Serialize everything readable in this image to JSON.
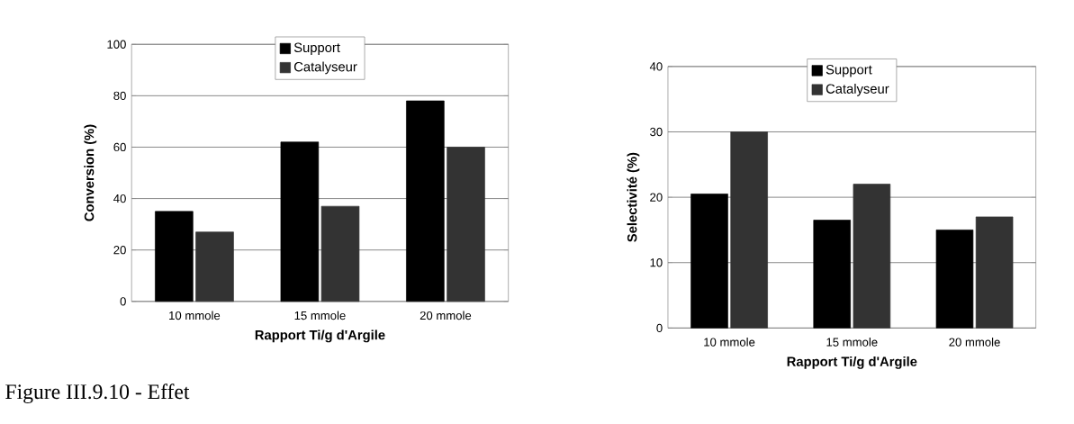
{
  "chart_data": [
    {
      "type": "bar",
      "xlabel": "Rapport Ti/g d'Argile",
      "ylabel": "Conversion (%)",
      "categories": [
        "10 mmole",
        "15 mmole",
        "20 mmole"
      ],
      "series": [
        {
          "name": "Support",
          "color": "#000000",
          "values": [
            35,
            62,
            78
          ]
        },
        {
          "name": "Catalyseur",
          "color": "#333333",
          "values": [
            27,
            37,
            60
          ]
        }
      ],
      "ylim": [
        0,
        100
      ],
      "yticks": [
        0,
        20,
        40,
        60,
        80,
        100
      ],
      "grid": "y",
      "legend": "top",
      "annotations": [
        "Figure III.9.10 - Effet"
      ]
    },
    {
      "type": "bar",
      "xlabel": "Rapport Ti/g d'Argile",
      "ylabel": "Selectivité (%)",
      "categories": [
        "10 mmole",
        "15 mmole",
        "20 mmole"
      ],
      "series": [
        {
          "name": "Support",
          "color": "#000000",
          "values": [
            20.5,
            16.5,
            15
          ]
        },
        {
          "name": "Catalyseur",
          "color": "#333333",
          "values": [
            30,
            22,
            17
          ]
        }
      ],
      "ylim": [
        0,
        40
      ],
      "yticks": [
        0,
        10,
        20,
        30,
        40
      ],
      "grid": "y",
      "legend": "top"
    }
  ]
}
